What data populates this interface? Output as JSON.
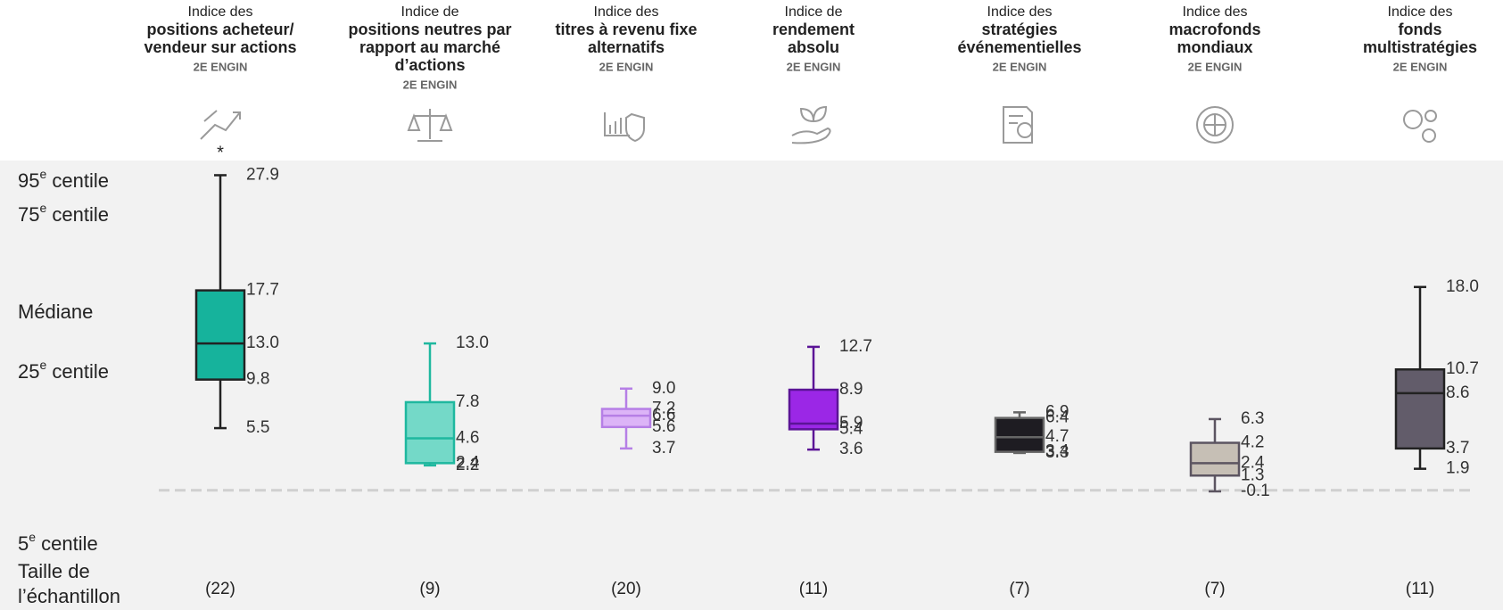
{
  "chart_data": {
    "type": "box",
    "annotation": "*",
    "ylim": [
      -1.5,
      29.2
    ],
    "row_labels": [
      {
        "lead": "95",
        "sup": "e",
        "tail": " centile"
      },
      {
        "lead": "75",
        "sup": "e",
        "tail": " centile"
      },
      {
        "lead": "Médiane"
      },
      {
        "lead": "25",
        "sup": "e",
        "tail": " centile"
      },
      {
        "lead": "5",
        "sup": "e",
        "tail": " centile"
      }
    ],
    "sample_size_label": [
      "Taille de",
      "l’échantillon"
    ],
    "series": [
      {
        "prefix": "Indice des",
        "name_lines": [
          "positions acheteur/",
          "vendeur sur actions"
        ],
        "tag": "2E ENGIN",
        "color": "#16b39c",
        "stroke": "#222222",
        "values": [
          5.5,
          9.8,
          13.0,
          17.7,
          27.9
        ],
        "value_labels": [
          "5.5",
          "9.8",
          "13.0",
          "17.7",
          "27.9"
        ],
        "sample_size": "(22)"
      },
      {
        "prefix": "Indice de",
        "name_lines": [
          "positions neutres par",
          "rapport au marché",
          "d’actions"
        ],
        "tag": "2E ENGIN",
        "color": "#74d9c8",
        "stroke": "#1fb89f",
        "values": [
          2.2,
          2.4,
          4.6,
          7.8,
          13.0
        ],
        "value_labels": [
          "2.2",
          "2.4",
          "4.6",
          "7.8",
          "13.0"
        ],
        "sample_size": "(9)"
      },
      {
        "prefix": "Indice des",
        "name_lines": [
          "titres à revenu fixe",
          "alternatifs"
        ],
        "tag": "2E ENGIN",
        "color": "#dcb4f7",
        "stroke": "#b67fe6",
        "values": [
          3.7,
          5.6,
          6.6,
          7.2,
          9.0
        ],
        "value_labels": [
          "3.7",
          "5.6",
          "6.6",
          "7.2",
          "9.0"
        ],
        "sample_size": "(20)"
      },
      {
        "prefix": "Indice de",
        "name_lines": [
          "rendement",
          "absolu"
        ],
        "tag": "2E ENGIN",
        "color": "#9b27e6",
        "stroke": "#5b1496",
        "values": [
          3.6,
          5.4,
          5.9,
          8.9,
          12.7
        ],
        "value_labels": [
          "3.6",
          "5.4",
          "5.9",
          "8.9",
          "12.7"
        ],
        "sample_size": "(11)"
      },
      {
        "prefix": "Indice des",
        "name_lines": [
          "stratégies",
          "événementielles"
        ],
        "tag": "2E ENGIN",
        "color": "#1e1c22",
        "stroke": "#666666",
        "values": [
          3.3,
          3.4,
          4.7,
          6.4,
          6.9
        ],
        "value_labels": [
          "3.3",
          "3.4",
          "4.7",
          "6.4",
          "6.9"
        ],
        "sample_size": "(7)"
      },
      {
        "prefix": "Indice des",
        "name_lines": [
          "macrofonds",
          "mondiaux"
        ],
        "tag": "2E ENGIN",
        "color": "#c6bfb5",
        "stroke": "#5c5561",
        "values": [
          -0.1,
          1.3,
          2.4,
          4.2,
          6.3
        ],
        "value_labels": [
          "-0.1",
          "1.3",
          "2.4",
          "4.2",
          "6.3"
        ],
        "sample_size": "(7)"
      },
      {
        "prefix": "Indice des",
        "name_lines": [
          "fonds",
          "multistratégies"
        ],
        "tag": "2E ENGIN",
        "color": "#625c6a",
        "stroke": "#222222",
        "values": [
          1.9,
          3.7,
          8.6,
          10.7,
          18.0
        ],
        "value_labels": [
          "1.9",
          "3.7",
          "8.6",
          "10.7",
          "18.0"
        ],
        "sample_size": "(11)"
      }
    ]
  }
}
